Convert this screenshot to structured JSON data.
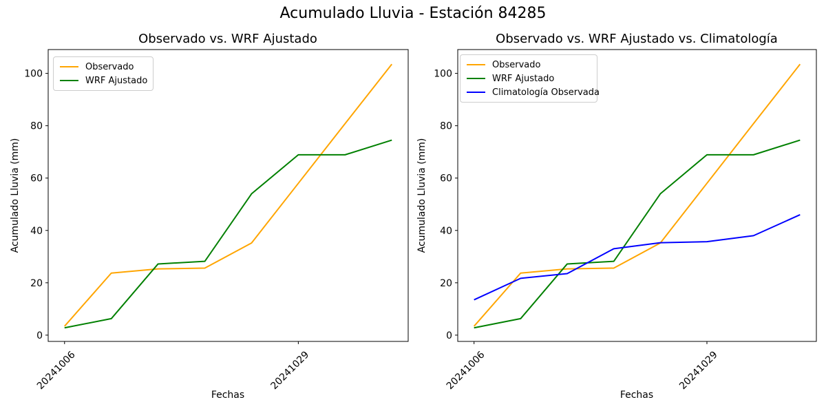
{
  "figure": {
    "suptitle": "Acumulado Lluvia - Estación 84285",
    "background_color": "#ffffff",
    "text_color": "#000000",
    "axes_color": "#000000"
  },
  "chart_data": [
    {
      "type": "line",
      "title": "Observado vs. WRF Ajustado",
      "xlabel": "Fechas",
      "ylabel": "Acumulado Lluvia (mm)",
      "x": [
        0,
        1,
        2,
        3,
        4,
        5,
        6,
        7
      ],
      "xtick_positions": [
        0,
        5
      ],
      "xtick_labels": [
        "20241006",
        "20241029"
      ],
      "xtick_label_rotation": 45,
      "yticks": [
        0,
        20,
        40,
        60,
        80,
        100
      ],
      "ylim": [
        -2.4,
        109.1
      ],
      "xlim": [
        -0.35,
        7.35
      ],
      "grid": false,
      "legend_position": "upper left",
      "series": [
        {
          "name": "Observado",
          "color": "#FFA500",
          "values": [
            3.4,
            23.7,
            25.3,
            25.6,
            35.2,
            58.0,
            80.8,
            103.5
          ]
        },
        {
          "name": "WRF Ajustado",
          "color": "#008000",
          "values": [
            2.8,
            6.3,
            27.2,
            28.2,
            54.0,
            68.9,
            68.9,
            74.5
          ]
        }
      ]
    },
    {
      "type": "line",
      "title": "Observado vs. WRF Ajustado vs. Climatología",
      "xlabel": "Fechas",
      "ylabel": "Acumulado Lluvia (mm)",
      "x": [
        0,
        1,
        2,
        3,
        4,
        5,
        6,
        7
      ],
      "xtick_positions": [
        0,
        5
      ],
      "xtick_labels": [
        "20241006",
        "20241029"
      ],
      "xtick_label_rotation": 45,
      "yticks": [
        0,
        20,
        40,
        60,
        80,
        100
      ],
      "ylim": [
        -2.4,
        109.1
      ],
      "xlim": [
        -0.35,
        7.35
      ],
      "grid": false,
      "legend_position": "upper left",
      "series": [
        {
          "name": "Observado",
          "color": "#FFA500",
          "values": [
            3.4,
            23.7,
            25.3,
            25.6,
            35.2,
            58.0,
            80.8,
            103.5
          ]
        },
        {
          "name": "WRF Ajustado",
          "color": "#008000",
          "values": [
            2.8,
            6.3,
            27.2,
            28.2,
            54.0,
            68.9,
            68.9,
            74.5
          ]
        },
        {
          "name": "Climatología Observada",
          "color": "#0000FF",
          "values": [
            13.5,
            21.7,
            23.5,
            33.0,
            35.3,
            35.7,
            38.0,
            46.0
          ]
        }
      ]
    }
  ]
}
